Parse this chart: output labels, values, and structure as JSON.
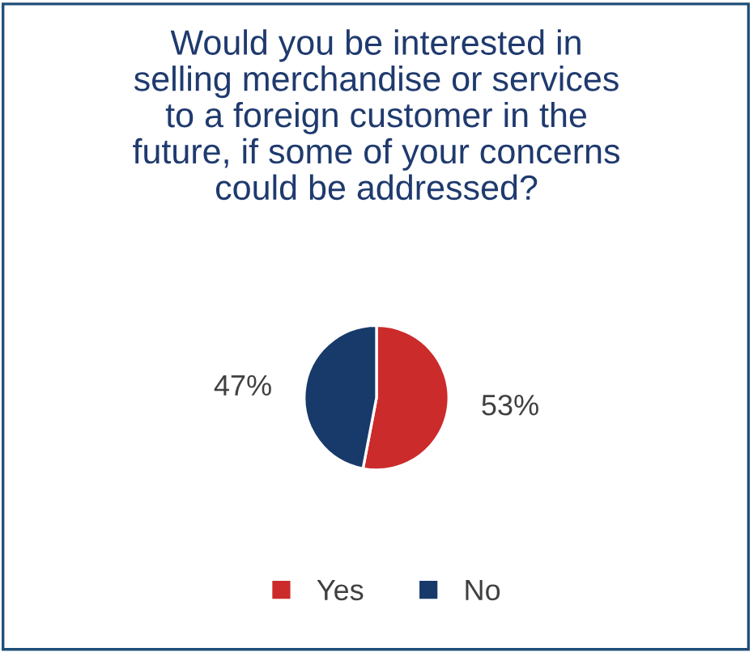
{
  "chart_data": {
    "type": "pie",
    "title": "Would you be interested in\nselling merchandise or services\nto a foreign customer in the\nfuture, if some of your concerns\ncould be addressed?",
    "categories": [
      "Yes",
      "No"
    ],
    "values": [
      53,
      47
    ],
    "colors": [
      "#cc2b2b",
      "#173a6b"
    ],
    "value_labels": [
      "53%",
      "47%"
    ],
    "legend": "bottom"
  }
}
